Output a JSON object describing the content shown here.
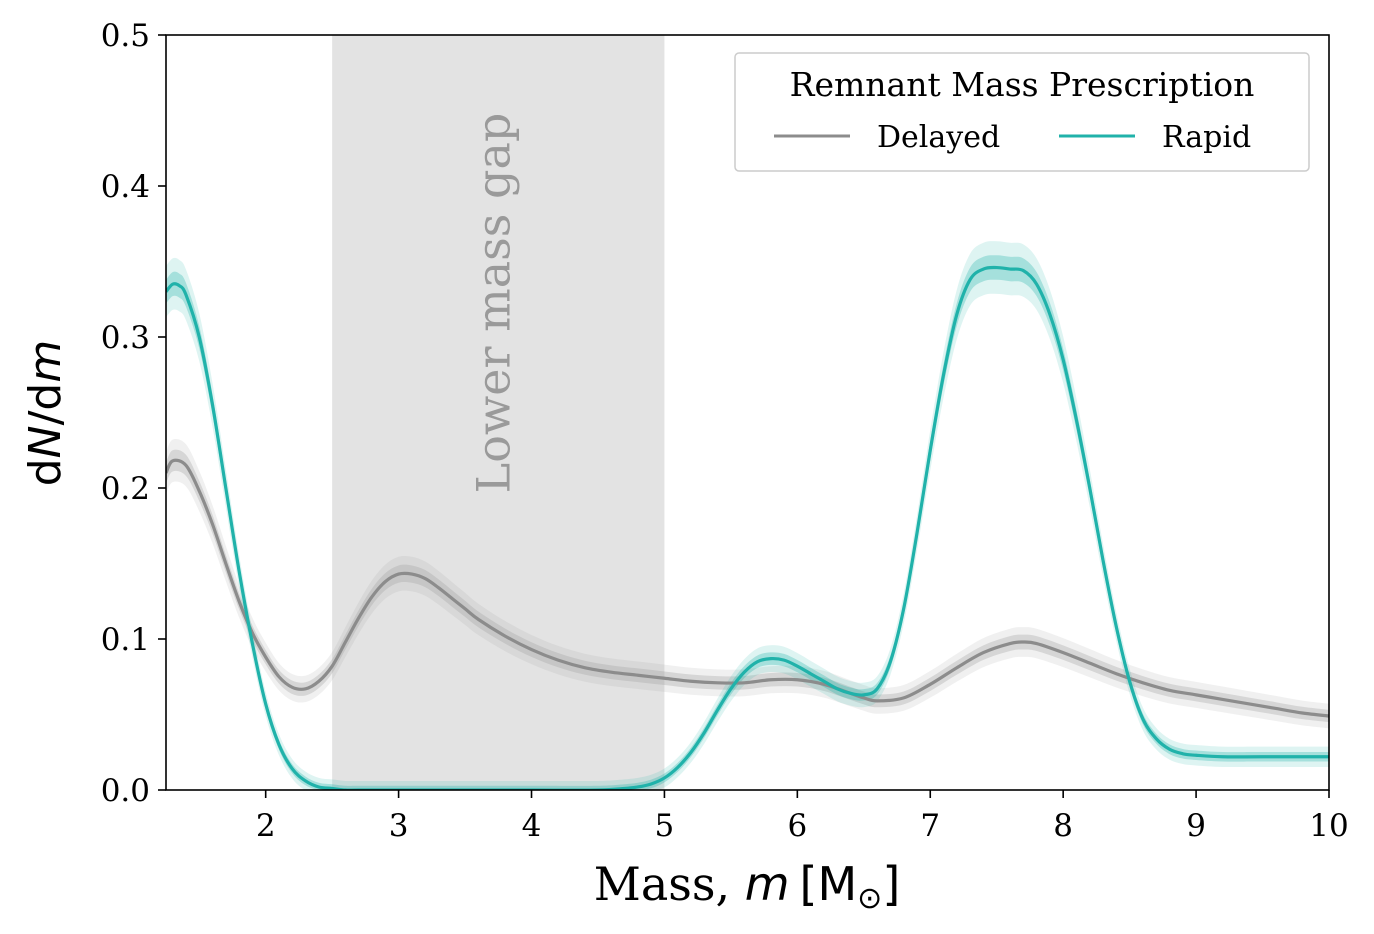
{
  "chart_data": {
    "type": "line",
    "xlabel": {
      "prefix": "Mass, ",
      "var": "m",
      "unit": "[M",
      "unit_sub": "⊙",
      "unit_close": "]"
    },
    "ylabel": {
      "d1": "d",
      "var1": "N",
      "slash": "/d",
      "var2": "m"
    },
    "xlim": [
      1.25,
      10
    ],
    "ylim": [
      0,
      0.5
    ],
    "x_ticks": [
      2,
      3,
      4,
      5,
      6,
      7,
      8,
      9,
      10
    ],
    "x_tick_labels": [
      "2",
      "3",
      "4",
      "5",
      "6",
      "7",
      "8",
      "9",
      "10"
    ],
    "y_ticks": [
      0.0,
      0.1,
      0.2,
      0.3,
      0.4,
      0.5
    ],
    "y_tick_labels": [
      "0.0",
      "0.1",
      "0.2",
      "0.3",
      "0.4",
      "0.5"
    ],
    "grid": false,
    "legend": {
      "title": "Remnant Mass Prescription",
      "placement": "top-right",
      "ncol": 2
    },
    "shaded_region": {
      "x0": 2.5,
      "x1": 5.0,
      "label": "Lower mass gap",
      "color": "#e3e3e3"
    },
    "series": [
      {
        "name": "Delayed",
        "color": "#8c8c8c",
        "band_color": "#9a9a9a",
        "x": [
          1.25,
          1.3,
          1.4,
          1.5,
          1.6,
          1.7,
          1.8,
          1.9,
          2.0,
          2.1,
          2.2,
          2.3,
          2.4,
          2.5,
          2.6,
          2.7,
          2.8,
          2.9,
          3.0,
          3.1,
          3.2,
          3.3,
          3.4,
          3.5,
          3.6,
          3.8,
          4.0,
          4.2,
          4.4,
          4.6,
          4.8,
          5.0,
          5.2,
          5.4,
          5.6,
          5.8,
          6.0,
          6.2,
          6.4,
          6.5,
          6.6,
          6.8,
          7.0,
          7.2,
          7.4,
          7.6,
          7.7,
          7.8,
          8.0,
          8.2,
          8.4,
          8.6,
          8.8,
          9.0,
          9.2,
          9.4,
          9.6,
          9.8,
          10.0
        ],
        "values": [
          0.21,
          0.218,
          0.215,
          0.198,
          0.176,
          0.15,
          0.125,
          0.104,
          0.088,
          0.075,
          0.068,
          0.067,
          0.072,
          0.082,
          0.098,
          0.114,
          0.128,
          0.138,
          0.143,
          0.143,
          0.14,
          0.134,
          0.127,
          0.12,
          0.113,
          0.102,
          0.093,
          0.086,
          0.081,
          0.078,
          0.076,
          0.074,
          0.072,
          0.071,
          0.071,
          0.073,
          0.073,
          0.07,
          0.064,
          0.061,
          0.059,
          0.061,
          0.07,
          0.081,
          0.091,
          0.097,
          0.098,
          0.097,
          0.091,
          0.084,
          0.077,
          0.071,
          0.066,
          0.063,
          0.06,
          0.057,
          0.054,
          0.051,
          0.049
        ],
        "bands": [
          {
            "level": "inner",
            "halfwidth": 0.008
          },
          {
            "level": "outer",
            "halfwidth": 0.016
          }
        ]
      },
      {
        "name": "Rapid",
        "color": "#20b2aa",
        "band_color": "#20b2aa",
        "x": [
          1.25,
          1.3,
          1.35,
          1.4,
          1.5,
          1.6,
          1.7,
          1.8,
          1.9,
          2.0,
          2.1,
          2.2,
          2.3,
          2.4,
          2.5,
          2.6,
          2.7,
          3.0,
          3.5,
          4.0,
          4.5,
          4.7,
          4.8,
          4.9,
          5.0,
          5.1,
          5.2,
          5.3,
          5.4,
          5.5,
          5.6,
          5.7,
          5.8,
          5.9,
          6.0,
          6.1,
          6.2,
          6.3,
          6.4,
          6.5,
          6.6,
          6.7,
          6.8,
          6.9,
          7.0,
          7.1,
          7.2,
          7.3,
          7.4,
          7.5,
          7.6,
          7.7,
          7.8,
          7.9,
          8.0,
          8.1,
          8.2,
          8.3,
          8.4,
          8.5,
          8.6,
          8.7,
          8.8,
          8.9,
          9.0,
          9.2,
          9.5,
          10.0
        ],
        "values": [
          0.33,
          0.335,
          0.334,
          0.328,
          0.3,
          0.255,
          0.2,
          0.145,
          0.097,
          0.057,
          0.03,
          0.014,
          0.006,
          0.002,
          0.001,
          0.0,
          0.0,
          0.0,
          0.0,
          0.0,
          0.0,
          0.001,
          0.002,
          0.004,
          0.008,
          0.015,
          0.025,
          0.038,
          0.053,
          0.067,
          0.078,
          0.085,
          0.087,
          0.086,
          0.082,
          0.077,
          0.072,
          0.067,
          0.064,
          0.063,
          0.067,
          0.085,
          0.12,
          0.17,
          0.225,
          0.275,
          0.315,
          0.338,
          0.345,
          0.346,
          0.345,
          0.344,
          0.335,
          0.315,
          0.285,
          0.245,
          0.2,
          0.152,
          0.108,
          0.072,
          0.047,
          0.034,
          0.027,
          0.024,
          0.023,
          0.022,
          0.022,
          0.022
        ],
        "bands": [
          {
            "level": "inner",
            "halfwidth": 0.007
          },
          {
            "level": "outer",
            "halfwidth": 0.015
          }
        ]
      }
    ]
  }
}
